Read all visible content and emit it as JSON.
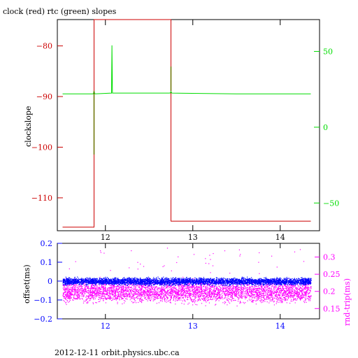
{
  "chart_data": [
    {
      "type": "line",
      "title": "clock (red) rtc (green) slopes",
      "xlim": [
        11.45,
        14.45
      ],
      "x_ticks": [
        12,
        13,
        14
      ],
      "ylabel_left": "clockslope",
      "ylim_left": [
        -116.5,
        -74.8
      ],
      "left_ticks": [
        -80,
        -90,
        -100,
        -110
      ],
      "ylim_right": [
        -68.3,
        71
      ],
      "right_ticks": [
        50,
        0,
        -50
      ],
      "colors": {
        "clock": "#cc0000",
        "rtc": "#00dd00",
        "spike": "#6a7000"
      },
      "series": [
        {
          "name": "clock",
          "axis": "left",
          "x": [
            11.51,
            11.87,
            11.87,
            12.75,
            12.75,
            14.35
          ],
          "y": [
            -115.8,
            -115.8,
            -74.8,
            -74.8,
            -114.6,
            -114.6
          ]
        },
        {
          "name": "rtc",
          "axis": "right",
          "x": [
            11.51,
            11.86,
            11.87,
            11.88,
            12.07,
            12.075,
            12.08,
            12.74,
            12.75,
            12.76,
            13.5,
            14.35
          ],
          "y": [
            22,
            22,
            23.5,
            22,
            22.5,
            54,
            22.5,
            22.5,
            23.5,
            22.5,
            22,
            22
          ]
        }
      ],
      "spikes": [
        {
          "x": 11.87,
          "from": 24,
          "to": -18
        },
        {
          "x": 12.75,
          "from": 24,
          "to": 40
        }
      ]
    },
    {
      "type": "scatter",
      "xlim": [
        11.45,
        14.45
      ],
      "x_ticks": [
        12,
        13,
        14
      ],
      "ylabel_left": "offset(ms)",
      "ylim_left": [
        -0.2,
        0.2
      ],
      "left_ticks": [
        0.2,
        0.1,
        0,
        -0.1,
        -0.2
      ],
      "ylabel_right": "rnd-trip(ms)",
      "ylim_right": [
        0.12,
        0.34
      ],
      "right_ticks": [
        0.3,
        0.25,
        0.2,
        0.15
      ],
      "colors": {
        "offset": "#0000ff",
        "roundtrip": "#ff00ff"
      },
      "series": [
        {
          "name": "offset",
          "axis": "left",
          "x_range": [
            11.51,
            14.35
          ],
          "center": 0.0,
          "spread": 0.012
        },
        {
          "name": "rnd-trip",
          "axis": "right",
          "x_range": [
            11.51,
            14.35
          ],
          "center": 0.2,
          "spread": 0.02
        }
      ]
    }
  ],
  "footer": "2012-12-11 orbit.physics.ubc.ca"
}
